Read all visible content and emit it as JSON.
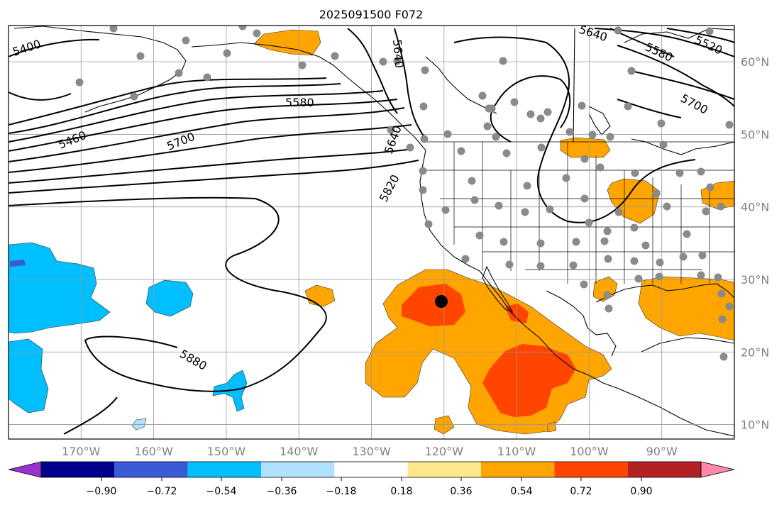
{
  "title": "2025091500 F072",
  "map": {
    "lon_range": [
      -180,
      -80
    ],
    "lat_range": [
      8,
      65
    ],
    "lon_ticks": [
      {
        "lon": -170,
        "label": "170°W"
      },
      {
        "lon": -160,
        "label": "160°W"
      },
      {
        "lon": -150,
        "label": "150°W"
      },
      {
        "lon": -140,
        "label": "140°W"
      },
      {
        "lon": -130,
        "label": "130°W"
      },
      {
        "lon": -120,
        "label": "120°W"
      },
      {
        "lon": -110,
        "label": "110°W"
      },
      {
        "lon": -100,
        "label": "100°W"
      },
      {
        "lon": -90,
        "label": "90°W"
      }
    ],
    "lat_ticks": [
      {
        "lat": 60,
        "label": "60°N"
      },
      {
        "lat": 50,
        "label": "50°N"
      },
      {
        "lat": 40,
        "label": "40°N"
      },
      {
        "lat": 30,
        "label": "30°N"
      },
      {
        "lat": 20,
        "label": "20°N"
      },
      {
        "lat": 10,
        "label": "10°N"
      }
    ],
    "contour_labels": [
      "5400",
      "5460",
      "5580",
      "5640",
      "5700",
      "5640",
      "5820",
      "5880",
      "5640",
      "5580",
      "5520",
      "5700"
    ],
    "marker_label": "storm-center"
  },
  "colorbar": {
    "colors": [
      "#9932cc",
      "#00008b",
      "#3b5bd6",
      "#00bfff",
      "#b0e2ff",
      "#ffffff",
      "#ffe88c",
      "#ffa500",
      "#ff4500",
      "#b22222",
      "#ff88aa"
    ],
    "ticks": [
      "−0.90",
      "−0.72",
      "−0.54",
      "−0.36",
      "−0.18",
      "0.18",
      "0.36",
      "0.54",
      "0.72",
      "0.90"
    ]
  }
}
